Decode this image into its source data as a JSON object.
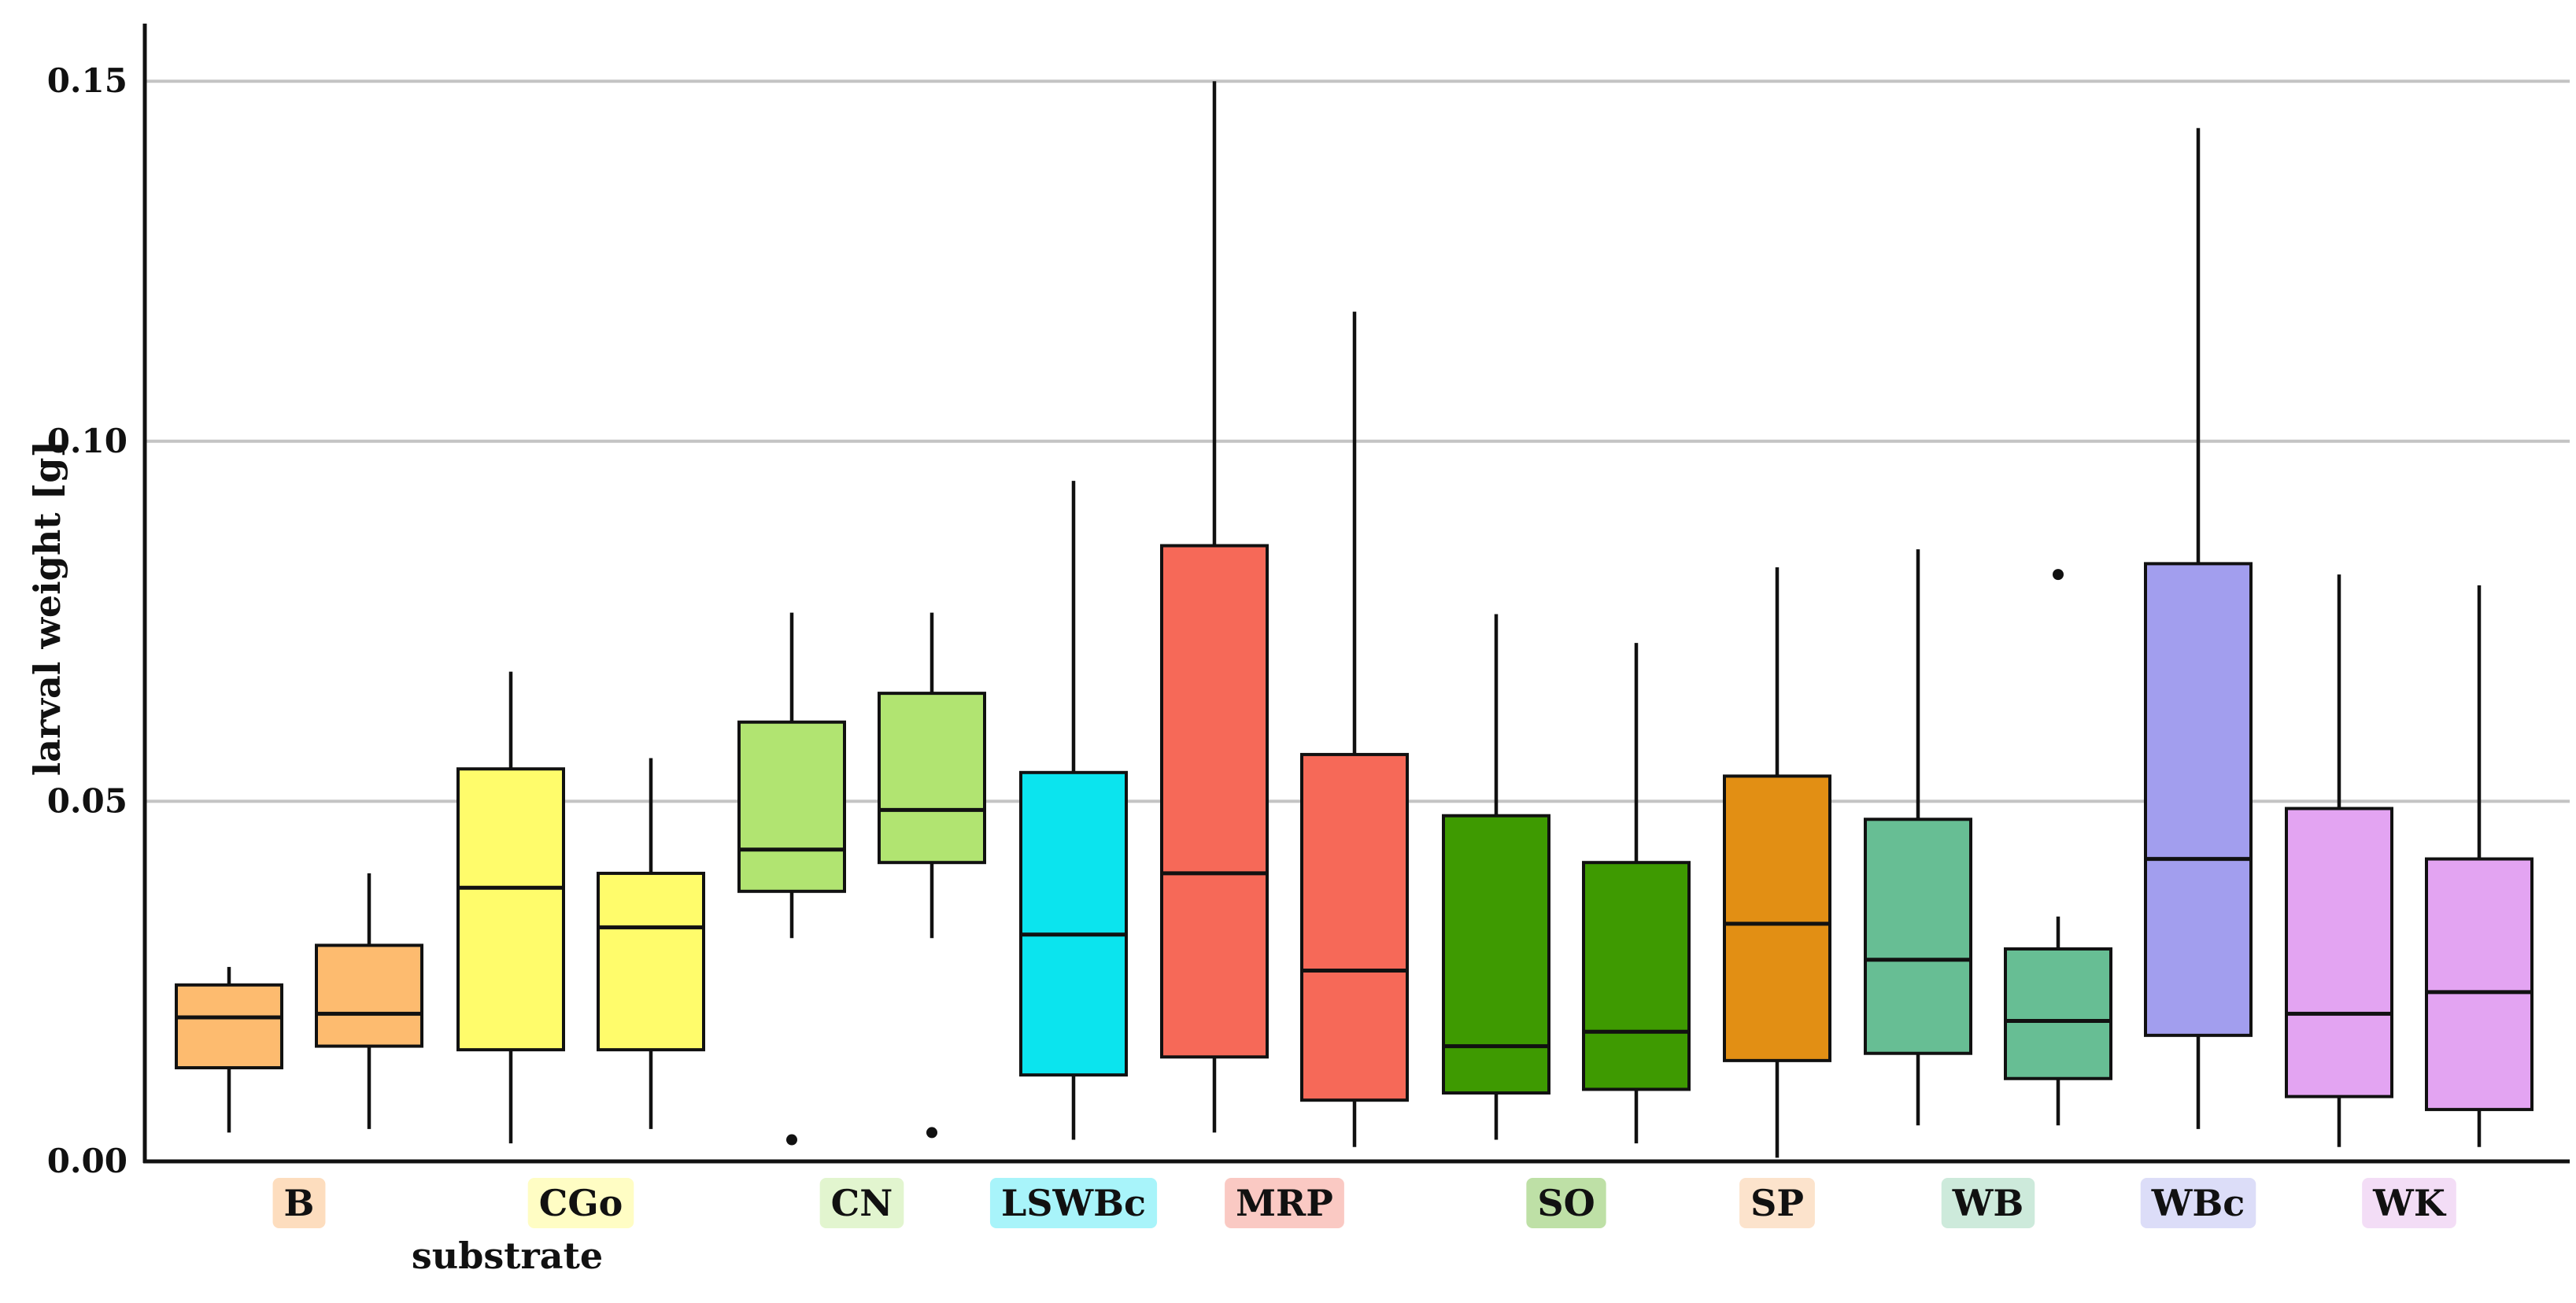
{
  "chart_data": {
    "type": "box",
    "title": "",
    "xlabel": "substrate",
    "ylabel": "larval weight [g]",
    "ylim": [
      0,
      0.158
    ],
    "yticks": [
      0.0,
      0.05,
      0.1,
      0.15
    ],
    "ytick_labels": [
      "0.00",
      "0.05",
      "0.10",
      "0.15"
    ],
    "grid": "horizontal",
    "categories": [
      {
        "label": "B",
        "label_color": "#FDDDBE",
        "boxes": [
          0,
          1
        ]
      },
      {
        "label": "CGo",
        "label_color": "#FFFDC4",
        "boxes": [
          2,
          3
        ]
      },
      {
        "label": "CN",
        "label_color": "#E2F5CF",
        "boxes": [
          4,
          5
        ]
      },
      {
        "label": "LSWBc",
        "label_color": "#A8F4FA",
        "boxes": [
          6
        ]
      },
      {
        "label": "MRP",
        "label_color": "#FAC9C3",
        "boxes": [
          7,
          8
        ]
      },
      {
        "label": "SO",
        "label_color": "#BEE0A6",
        "boxes": [
          9,
          10
        ]
      },
      {
        "label": "SP",
        "label_color": "#FCE3CC",
        "boxes": [
          11
        ]
      },
      {
        "label": "WB",
        "label_color": "#CDEADB",
        "boxes": [
          12,
          13
        ]
      },
      {
        "label": "WBc",
        "label_color": "#DCDDF8",
        "boxes": [
          14
        ]
      },
      {
        "label": "WK",
        "label_color": "#F3DDF6",
        "boxes": [
          15,
          16
        ]
      }
    ],
    "boxes": [
      {
        "substrate": "B",
        "color": "#FDBB6F",
        "whisker_low": 0.004,
        "q1": 0.013,
        "median": 0.02,
        "q3": 0.0245,
        "whisker_high": 0.027,
        "outliers": []
      },
      {
        "substrate": "B",
        "color": "#FDBB6F",
        "whisker_low": 0.0045,
        "q1": 0.016,
        "median": 0.0205,
        "q3": 0.03,
        "whisker_high": 0.04,
        "outliers": []
      },
      {
        "substrate": "CGo",
        "color": "#FFFC6B",
        "whisker_low": 0.0025,
        "q1": 0.0155,
        "median": 0.038,
        "q3": 0.0545,
        "whisker_high": 0.068,
        "outliers": []
      },
      {
        "substrate": "CGo",
        "color": "#FFFC6B",
        "whisker_low": 0.0045,
        "q1": 0.0155,
        "median": 0.0325,
        "q3": 0.04,
        "whisker_high": 0.056,
        "outliers": []
      },
      {
        "substrate": "CN",
        "color": "#B1E471",
        "whisker_low": 0.031,
        "q1": 0.0375,
        "median": 0.0433,
        "q3": 0.061,
        "whisker_high": 0.0762,
        "outliers": [
          0.003
        ]
      },
      {
        "substrate": "CN",
        "color": "#B1E471",
        "whisker_low": 0.031,
        "q1": 0.0415,
        "median": 0.0488,
        "q3": 0.065,
        "whisker_high": 0.0762,
        "outliers": [
          0.004
        ]
      },
      {
        "substrate": "LSWBc",
        "color": "#0BE4EE",
        "whisker_low": 0.003,
        "q1": 0.012,
        "median": 0.0315,
        "q3": 0.054,
        "whisker_high": 0.0945,
        "outliers": []
      },
      {
        "substrate": "MRP",
        "color": "#F66958",
        "whisker_low": 0.004,
        "q1": 0.0145,
        "median": 0.04,
        "q3": 0.0855,
        "whisker_high": 0.15,
        "outliers": []
      },
      {
        "substrate": "MRP",
        "color": "#F66958",
        "whisker_low": 0.002,
        "q1": 0.0085,
        "median": 0.0265,
        "q3": 0.0565,
        "whisker_high": 0.118,
        "outliers": []
      },
      {
        "substrate": "SO",
        "color": "#3E9A01",
        "whisker_low": 0.003,
        "q1": 0.0095,
        "median": 0.016,
        "q3": 0.048,
        "whisker_high": 0.076,
        "outliers": []
      },
      {
        "substrate": "SO",
        "color": "#3E9A01",
        "whisker_low": 0.0025,
        "q1": 0.01,
        "median": 0.018,
        "q3": 0.0415,
        "whisker_high": 0.072,
        "outliers": []
      },
      {
        "substrate": "SP",
        "color": "#E28F14",
        "whisker_low": 0.0005,
        "q1": 0.014,
        "median": 0.033,
        "q3": 0.0535,
        "whisker_high": 0.0825,
        "outliers": []
      },
      {
        "substrate": "WB",
        "color": "#67BE94",
        "whisker_low": 0.005,
        "q1": 0.015,
        "median": 0.028,
        "q3": 0.0475,
        "whisker_high": 0.085,
        "outliers": []
      },
      {
        "substrate": "WB",
        "color": "#67BE94",
        "whisker_low": 0.005,
        "q1": 0.0115,
        "median": 0.0195,
        "q3": 0.0295,
        "whisker_high": 0.034,
        "outliers": [
          0.0815
        ]
      },
      {
        "substrate": "WBc",
        "color": "#A29EEE",
        "whisker_low": 0.0045,
        "q1": 0.0175,
        "median": 0.042,
        "q3": 0.083,
        "whisker_high": 0.1435,
        "outliers": []
      },
      {
        "substrate": "WK",
        "color": "#E3A4F2",
        "whisker_low": 0.002,
        "q1": 0.009,
        "median": 0.0205,
        "q3": 0.049,
        "whisker_high": 0.0815,
        "outliers": []
      },
      {
        "substrate": "WK",
        "color": "#E3A4F2",
        "whisker_low": 0.002,
        "q1": 0.0072,
        "median": 0.0235,
        "q3": 0.042,
        "whisker_high": 0.08,
        "outliers": []
      }
    ]
  }
}
